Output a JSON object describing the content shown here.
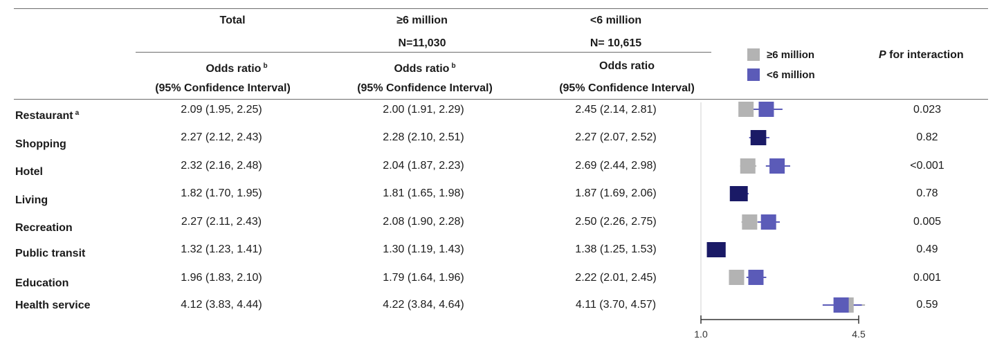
{
  "header": {
    "col_total": "Total",
    "col_ge6": "≥6 million",
    "col_ge6_n": "N=11,030",
    "col_lt6": "<6 million",
    "col_lt6_n": "N= 10,615",
    "odds_ratio_label": "Odds ratio",
    "sup_b": "b",
    "ci_label": "(95% Confidence Interval)",
    "p_label_italic": "P",
    "p_label_rest": " for interaction"
  },
  "legend": [
    {
      "label": "≥6 million",
      "color": "#b3b3b3"
    },
    {
      "label": "<6 million",
      "color": "#5b5bb8"
    }
  ],
  "rows": [
    {
      "label": "Restaurant",
      "sup": "a",
      "total": "2.09 (1.95, 2.25)",
      "ge6": "2.00 (1.91, 2.29)",
      "lt6": "2.45 (2.14, 2.81)",
      "p": "0.023"
    },
    {
      "label": "Shopping",
      "sup": "",
      "total": "2.27 (2.12, 2.43)",
      "ge6": "2.28 (2.10, 2.51)",
      "lt6": "2.27 (2.07, 2.52)",
      "p": "0.82"
    },
    {
      "label": "Hotel",
      "sup": "",
      "total": "2.32 (2.16, 2.48)",
      "ge6": "2.04 (1.87, 2.23)",
      "lt6": "2.69 (2.44, 2.98)",
      "p": "<0.001"
    },
    {
      "label": "Living",
      "sup": "",
      "total": "1.82 (1.70, 1.95)",
      "ge6": "1.81 (1.65, 1.98)",
      "lt6": "1.87 (1.69, 2.06)",
      "p": "0.78"
    },
    {
      "label": "Recreation",
      "sup": "",
      "total": "2.27 (2.11, 2.43)",
      "ge6": "2.08 (1.90, 2.28)",
      "lt6": "2.50 (2.26, 2.75)",
      "p": "0.005"
    },
    {
      "label": "Public transit",
      "sup": "",
      "total": "1.32 (1.23, 1.41)",
      "ge6": "1.30 (1.19, 1.43)",
      "lt6": "1.38 (1.25, 1.53)",
      "p": "0.49"
    },
    {
      "label": "Education",
      "sup": "",
      "total": "1.96 (1.83, 2.10)",
      "ge6": "1.79 (1.64, 1.96)",
      "lt6": "2.22 (2.01, 2.45)",
      "p": "0.001"
    },
    {
      "label": "Health service",
      "sup": "",
      "total": "4.12 (3.83, 4.44)",
      "ge6": "4.22 (3.84, 4.64)",
      "lt6": "4.11 (3.70, 4.57)",
      "p": "0.59"
    }
  ],
  "chart_data": {
    "type": "forest",
    "x_axis": {
      "min": 1.0,
      "max": 4.5,
      "tick_labels": [
        "1.0",
        "4.5"
      ]
    },
    "overlap_color": "#1a1a66",
    "categories": [
      "Restaurant",
      "Shopping",
      "Hotel",
      "Living",
      "Recreation",
      "Public transit",
      "Education",
      "Health service"
    ],
    "series": [
      {
        "name": "≥6 million",
        "color": "#b3b3b3",
        "points": [
          {
            "or": 2.0,
            "lo": 1.91,
            "hi": 2.29
          },
          {
            "or": 2.28,
            "lo": 2.1,
            "hi": 2.51
          },
          {
            "or": 2.04,
            "lo": 1.87,
            "hi": 2.23
          },
          {
            "or": 1.81,
            "lo": 1.65,
            "hi": 1.98
          },
          {
            "or": 2.08,
            "lo": 1.9,
            "hi": 2.28
          },
          {
            "or": 1.3,
            "lo": 1.19,
            "hi": 1.43
          },
          {
            "or": 1.79,
            "lo": 1.64,
            "hi": 1.96
          },
          {
            "or": 4.22,
            "lo": 3.84,
            "hi": 4.64
          }
        ]
      },
      {
        "name": "<6 million",
        "color": "#5b5bb8",
        "points": [
          {
            "or": 2.45,
            "lo": 2.14,
            "hi": 2.81
          },
          {
            "or": 2.27,
            "lo": 2.07,
            "hi": 2.52
          },
          {
            "or": 2.69,
            "lo": 2.44,
            "hi": 2.98
          },
          {
            "or": 1.87,
            "lo": 1.69,
            "hi": 2.06
          },
          {
            "or": 2.5,
            "lo": 2.26,
            "hi": 2.75
          },
          {
            "or": 1.38,
            "lo": 1.25,
            "hi": 1.53
          },
          {
            "or": 2.22,
            "lo": 2.01,
            "hi": 2.45
          },
          {
            "or": 4.11,
            "lo": 3.7,
            "hi": 4.57
          }
        ]
      }
    ]
  }
}
